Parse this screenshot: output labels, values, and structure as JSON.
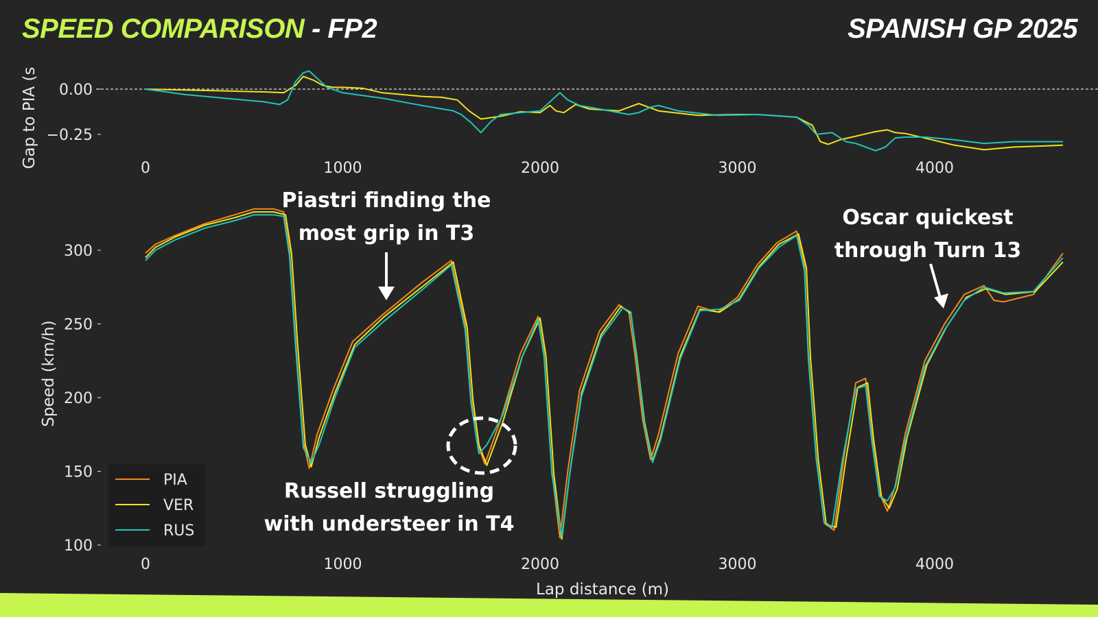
{
  "header": {
    "title_accent": "SPEED COMPARISON",
    "title_suffix": " - FP2",
    "event": "SPANISH GP 2025"
  },
  "colors": {
    "background": "#262526",
    "accent": "#c6f550",
    "PIA": "#f28a1c",
    "VER": "#f2e21c",
    "RUS": "#1fc7bb"
  },
  "annotations": [
    {
      "id": "piastri",
      "lines": [
        "Piastri finding the",
        "most grip in T3"
      ]
    },
    {
      "id": "russell",
      "lines": [
        "Russell struggling",
        "with understeer in T4"
      ]
    },
    {
      "id": "oscar",
      "lines": [
        "Oscar quickest",
        "through Turn 13"
      ]
    }
  ],
  "chart_data": [
    {
      "type": "line",
      "ylabel": "Gap to PIA (s",
      "xlabel": "",
      "xlim": [
        -250,
        4750
      ],
      "ylim": [
        -0.38,
        0.12
      ],
      "xticks": [
        0,
        1000,
        2000,
        3000,
        4000
      ],
      "yticks": [
        0.0,
        -0.25
      ],
      "ytick_labels": [
        "0.00",
        "−0.25"
      ],
      "reference_line": 0.0,
      "series": [
        {
          "name": "VER",
          "color": "#f2e21c",
          "x": [
            0,
            200,
            400,
            600,
            700,
            760,
            800,
            850,
            900,
            950,
            1000,
            1100,
            1200,
            1300,
            1400,
            1500,
            1580,
            1640,
            1700,
            1800,
            1900,
            2000,
            2050,
            2080,
            2120,
            2180,
            2250,
            2400,
            2500,
            2600,
            2800,
            3000,
            3100,
            3300,
            3380,
            3420,
            3460,
            3520,
            3580,
            3620,
            3700,
            3760,
            3800,
            3850,
            3950,
            4100,
            4250,
            4400,
            4650
          ],
          "y": [
            0,
            -0.005,
            -0.01,
            -0.015,
            -0.02,
            0.02,
            0.07,
            0.05,
            0.02,
            0.01,
            0.01,
            0.005,
            -0.02,
            -0.03,
            -0.04,
            -0.045,
            -0.06,
            -0.12,
            -0.165,
            -0.15,
            -0.125,
            -0.13,
            -0.09,
            -0.12,
            -0.13,
            -0.085,
            -0.11,
            -0.12,
            -0.08,
            -0.12,
            -0.145,
            -0.14,
            -0.14,
            -0.155,
            -0.2,
            -0.29,
            -0.305,
            -0.28,
            -0.265,
            -0.255,
            -0.235,
            -0.225,
            -0.24,
            -0.245,
            -0.27,
            -0.31,
            -0.335,
            -0.32,
            -0.31
          ]
        },
        {
          "name": "RUS",
          "color": "#1fc7bb",
          "x": [
            0,
            200,
            400,
            600,
            680,
            720,
            760,
            800,
            830,
            870,
            920,
            1000,
            1200,
            1400,
            1560,
            1600,
            1650,
            1700,
            1750,
            1800,
            1900,
            2000,
            2060,
            2100,
            2140,
            2200,
            2300,
            2450,
            2500,
            2560,
            2600,
            2700,
            2900,
            3100,
            3300,
            3360,
            3400,
            3440,
            3480,
            3550,
            3600,
            3650,
            3700,
            3750,
            3800,
            3850,
            3950,
            4100,
            4250,
            4400,
            4650
          ],
          "y": [
            0,
            -0.03,
            -0.05,
            -0.07,
            -0.085,
            -0.06,
            0.04,
            0.09,
            0.1,
            0.06,
            0.01,
            -0.02,
            -0.05,
            -0.09,
            -0.12,
            -0.14,
            -0.185,
            -0.24,
            -0.18,
            -0.14,
            -0.13,
            -0.12,
            -0.06,
            -0.02,
            -0.06,
            -0.09,
            -0.11,
            -0.14,
            -0.13,
            -0.1,
            -0.09,
            -0.12,
            -0.145,
            -0.14,
            -0.155,
            -0.2,
            -0.25,
            -0.245,
            -0.24,
            -0.29,
            -0.3,
            -0.32,
            -0.34,
            -0.32,
            -0.27,
            -0.265,
            -0.265,
            -0.28,
            -0.3,
            -0.29,
            -0.29
          ]
        }
      ]
    },
    {
      "type": "line",
      "ylabel": "Speed (km/h)",
      "xlabel": "Lap distance (m)",
      "xlim": [
        -250,
        4750
      ],
      "ylim": [
        97,
        330
      ],
      "xticks": [
        0,
        1000,
        2000,
        3000,
        4000
      ],
      "yticks": [
        100,
        150,
        200,
        250,
        300
      ],
      "legend": {
        "position": "lower-left",
        "entries": [
          "PIA",
          "VER",
          "RUS"
        ]
      },
      "series": [
        {
          "name": "PIA",
          "color": "#f28a1c",
          "x": [
            0,
            50,
            150,
            300,
            450,
            550,
            650,
            700,
            730,
            760,
            800,
            830,
            870,
            950,
            1050,
            1200,
            1400,
            1550,
            1620,
            1650,
            1680,
            1720,
            1800,
            1900,
            1990,
            2020,
            2060,
            2100,
            2140,
            2200,
            2300,
            2400,
            2450,
            2480,
            2520,
            2560,
            2600,
            2700,
            2800,
            2900,
            3000,
            3100,
            3200,
            3300,
            3340,
            3360,
            3400,
            3440,
            3490,
            3540,
            3600,
            3650,
            3680,
            3720,
            3760,
            3800,
            3850,
            3950,
            4050,
            4150,
            4250,
            4300,
            4350,
            4500,
            4650
          ],
          "y": [
            298,
            304,
            310,
            318,
            324,
            328,
            328,
            326,
            300,
            240,
            170,
            152,
            175,
            205,
            238,
            256,
            278,
            293,
            250,
            200,
            170,
            155,
            185,
            230,
            255,
            230,
            150,
            105,
            150,
            205,
            245,
            263,
            258,
            230,
            185,
            158,
            175,
            230,
            262,
            258,
            268,
            290,
            305,
            313,
            290,
            230,
            160,
            115,
            110,
            160,
            210,
            213,
            175,
            135,
            123,
            140,
            175,
            225,
            250,
            270,
            276,
            266,
            265,
            270,
            298
          ]
        },
        {
          "name": "VER",
          "color": "#f2e21c",
          "x": [
            0,
            50,
            150,
            300,
            450,
            550,
            650,
            710,
            740,
            770,
            810,
            840,
            880,
            960,
            1060,
            1210,
            1410,
            1560,
            1630,
            1660,
            1690,
            1730,
            1810,
            1910,
            2000,
            2030,
            2070,
            2110,
            2150,
            2210,
            2310,
            2410,
            2460,
            2490,
            2530,
            2570,
            2610,
            2710,
            2810,
            2910,
            3010,
            3110,
            3210,
            3310,
            3350,
            3370,
            3410,
            3450,
            3500,
            3550,
            3610,
            3660,
            3690,
            3730,
            3770,
            3810,
            3860,
            3960,
            4060,
            4160,
            4260,
            4310,
            4360,
            4510,
            4650
          ],
          "y": [
            295,
            302,
            309,
            317,
            322,
            326,
            326,
            324,
            298,
            238,
            168,
            153,
            173,
            203,
            236,
            255,
            276,
            292,
            248,
            198,
            168,
            154,
            183,
            228,
            254,
            228,
            148,
            104,
            148,
            203,
            243,
            262,
            257,
            228,
            183,
            157,
            173,
            228,
            260,
            258,
            267,
            289,
            304,
            311,
            288,
            228,
            158,
            114,
            112,
            158,
            207,
            210,
            172,
            133,
            125,
            138,
            173,
            222,
            248,
            268,
            274,
            272,
            270,
            272,
            292
          ]
        },
        {
          "name": "RUS",
          "color": "#1fc7bb",
          "x": [
            0,
            50,
            150,
            300,
            450,
            550,
            650,
            700,
            730,
            760,
            800,
            840,
            880,
            960,
            1060,
            1210,
            1410,
            1550,
            1620,
            1650,
            1690,
            1730,
            1810,
            1910,
            1990,
            2020,
            2060,
            2110,
            2150,
            2210,
            2310,
            2420,
            2460,
            2490,
            2530,
            2570,
            2610,
            2710,
            2810,
            2910,
            3010,
            3110,
            3210,
            3300,
            3340,
            3360,
            3400,
            3440,
            3480,
            3530,
            3600,
            3650,
            3680,
            3720,
            3760,
            3800,
            3850,
            3950,
            4050,
            4150,
            4250,
            4300,
            4350,
            4500,
            4650
          ],
          "y": [
            293,
            300,
            307,
            315,
            320,
            324,
            324,
            323,
            296,
            236,
            166,
            156,
            168,
            200,
            234,
            252,
            274,
            290,
            246,
            196,
            162,
            168,
            188,
            228,
            253,
            228,
            148,
            106,
            148,
            201,
            241,
            261,
            258,
            226,
            181,
            156,
            171,
            226,
            259,
            260,
            266,
            288,
            302,
            310,
            286,
            226,
            158,
            116,
            112,
            156,
            206,
            208,
            172,
            133,
            130,
            139,
            170,
            221,
            246,
            266,
            275,
            273,
            271,
            272,
            295
          ]
        }
      ]
    }
  ]
}
